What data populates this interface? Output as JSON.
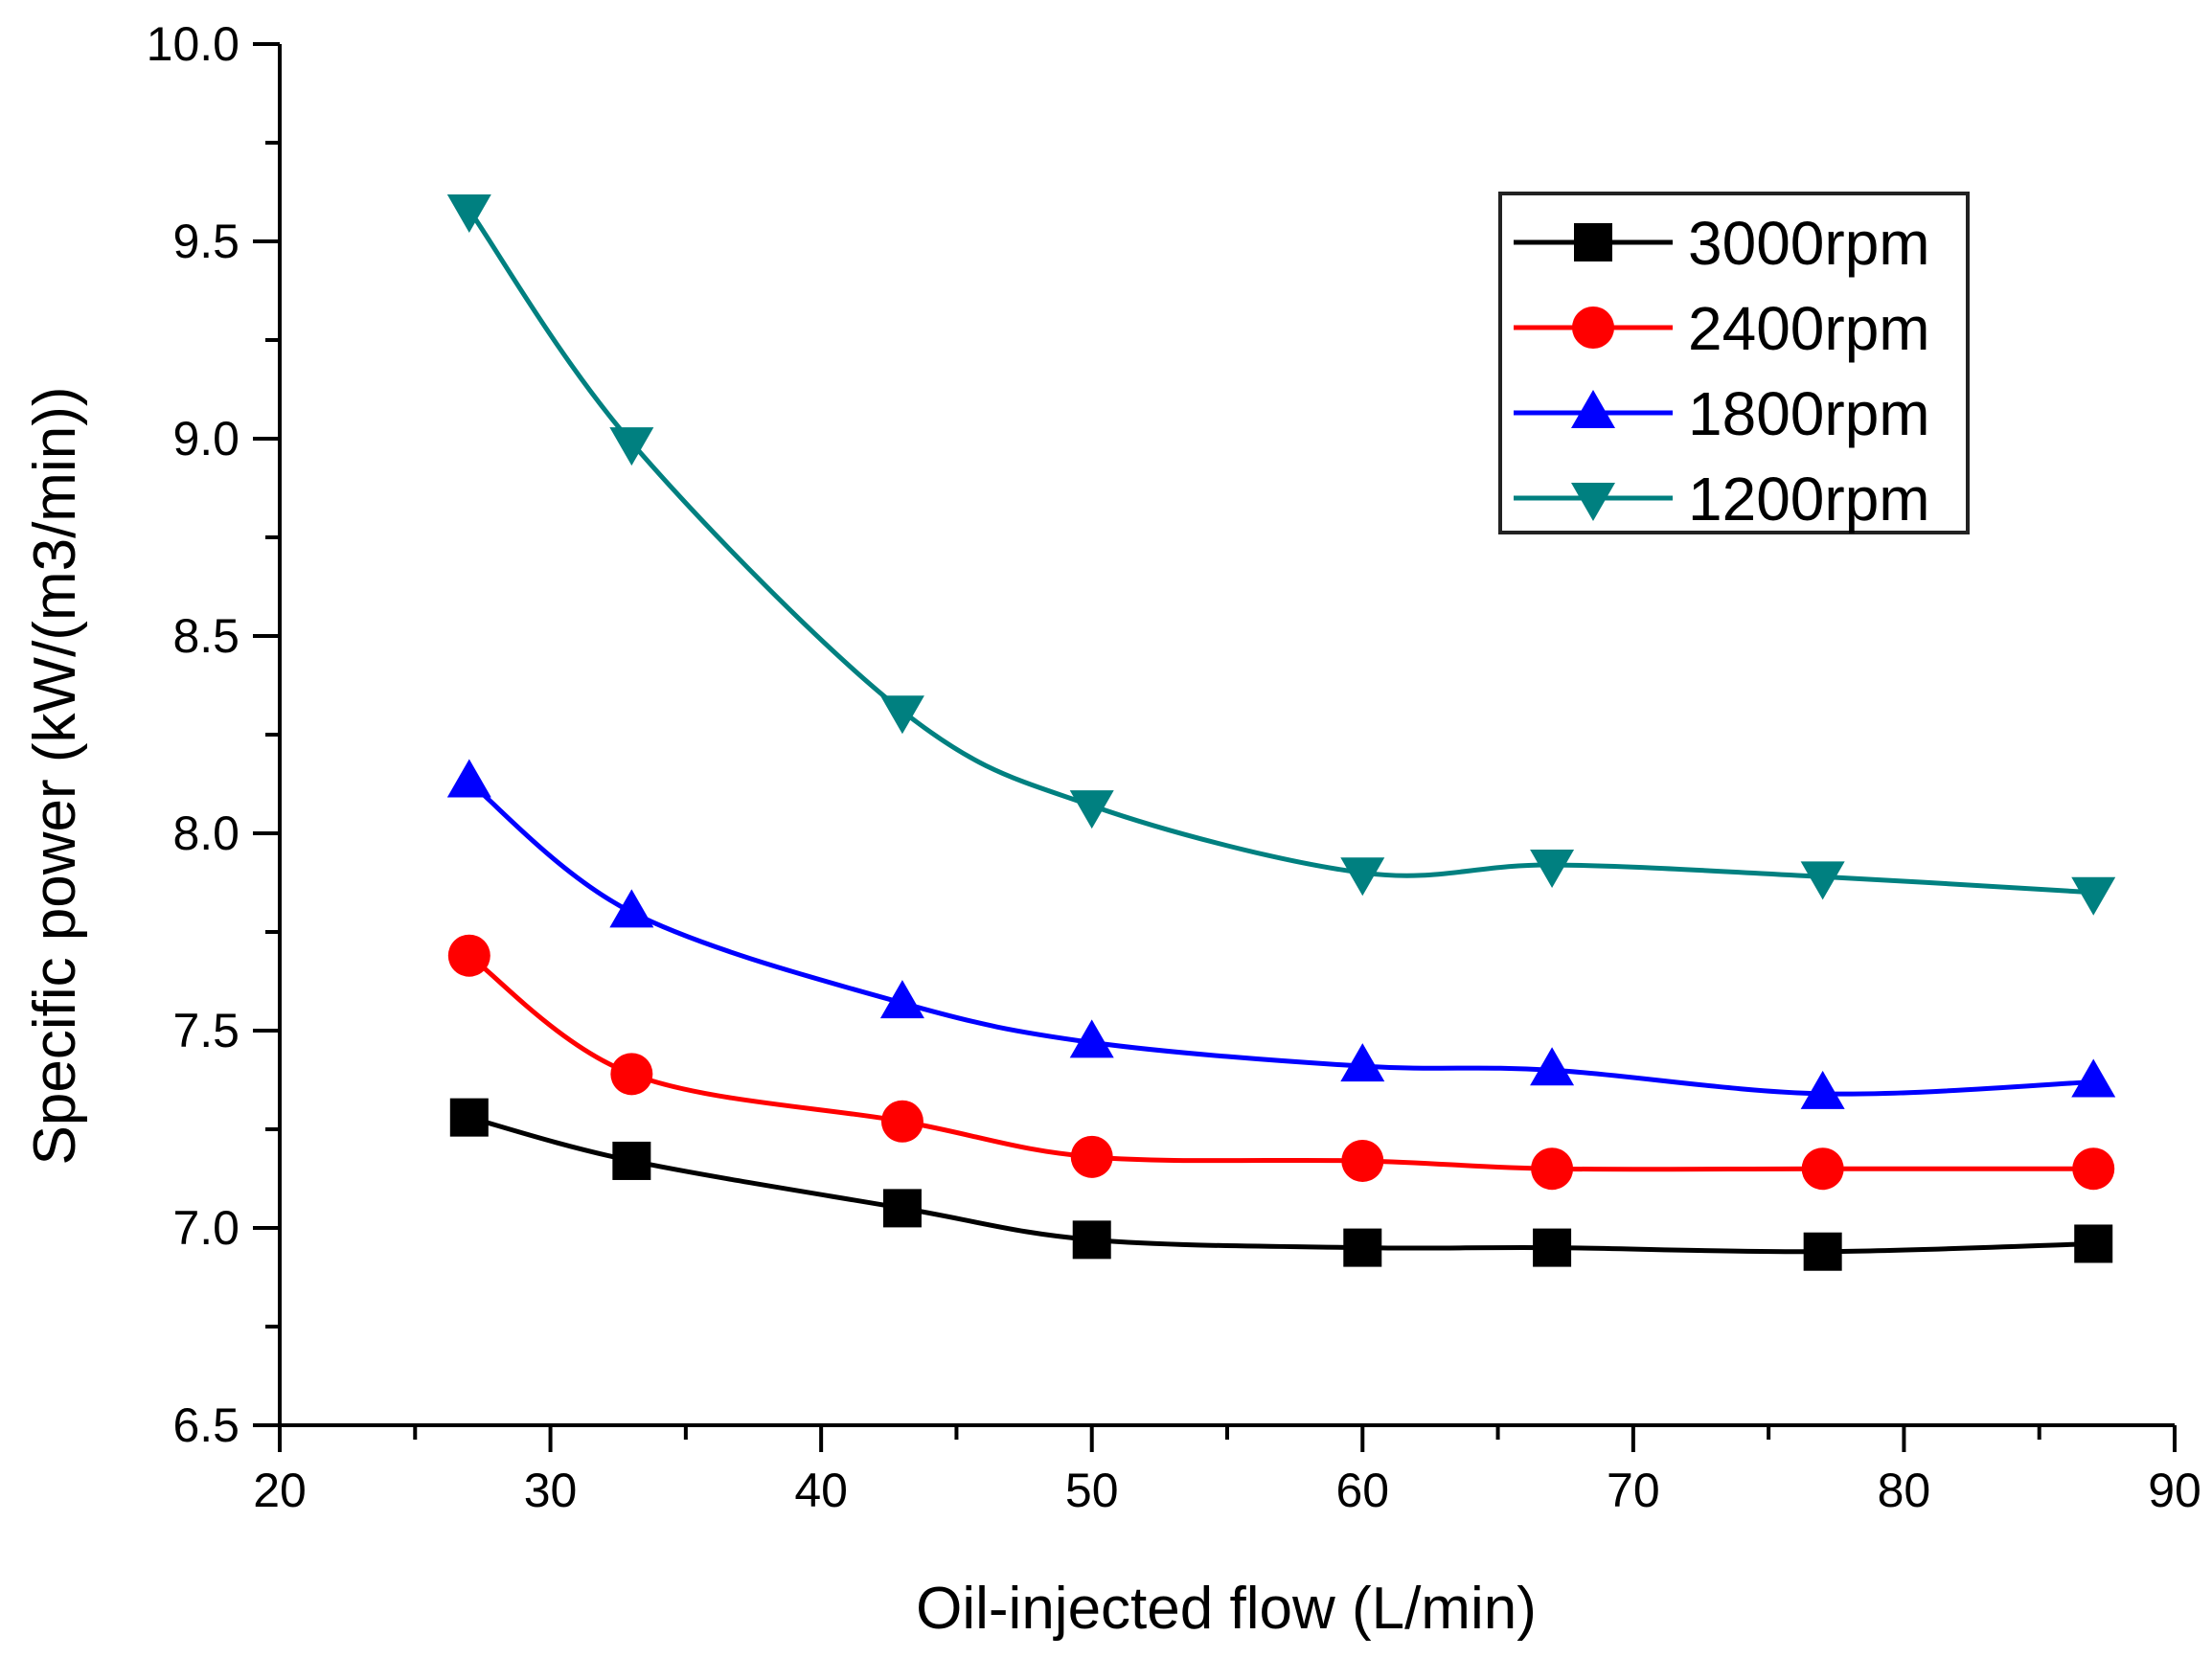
{
  "chart_data": {
    "type": "line",
    "title": "",
    "xlabel": "Oil-injected flow (L/min)",
    "ylabel": "Specific power (kW/(m3/min))",
    "xlim": [
      20,
      90
    ],
    "ylim": [
      6.5,
      10.0
    ],
    "x_ticks": [
      20,
      30,
      40,
      50,
      60,
      70,
      80,
      90
    ],
    "x_tick_labels": [
      "20",
      "30",
      "40",
      "50",
      "60",
      "70",
      "80",
      "90"
    ],
    "y_ticks": [
      6.5,
      7.0,
      7.5,
      8.0,
      8.5,
      9.0,
      9.5,
      10.0
    ],
    "y_tick_labels": [
      "6.5",
      "7.0",
      "7.5",
      "8.0",
      "8.5",
      "9.0",
      "9.5",
      "10.0"
    ],
    "x": [
      27,
      33,
      43,
      50,
      60,
      67,
      77,
      87
    ],
    "legend_position": "top-right",
    "series": [
      {
        "name": "3000rpm",
        "color": "#000000",
        "marker": "square",
        "values": [
          7.28,
          7.17,
          7.05,
          6.97,
          6.95,
          6.95,
          6.94,
          6.96
        ]
      },
      {
        "name": "2400rpm",
        "color": "#ff0000",
        "marker": "circle",
        "values": [
          7.69,
          7.39,
          7.27,
          7.18,
          7.17,
          7.15,
          7.15,
          7.15
        ]
      },
      {
        "name": "1800rpm",
        "color": "#0000ff",
        "marker": "triangle-up",
        "values": [
          8.13,
          7.8,
          7.57,
          7.47,
          7.41,
          7.4,
          7.34,
          7.37
        ]
      },
      {
        "name": "1200rpm",
        "color": "#008080",
        "marker": "triangle-down",
        "values": [
          9.58,
          8.99,
          8.31,
          8.07,
          7.9,
          7.92,
          7.89,
          7.85
        ]
      }
    ]
  }
}
